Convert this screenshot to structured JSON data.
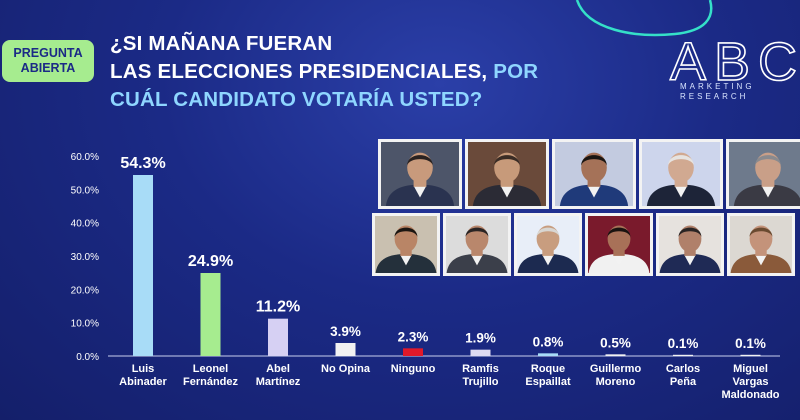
{
  "badge": {
    "line1": "PREGUNTA",
    "line2": "ABIERTA"
  },
  "question": {
    "line1": "¿SI MAÑANA FUERAN",
    "line2_white": "LAS ELECCIONES PRESIDENCIALES,",
    "line2_blue": " POR",
    "line3": "CUÁL CANDIDATO VOTARÍA USTED?"
  },
  "logo": {
    "mark": "ABC",
    "line1": "MARKETING",
    "line2": "RESEARCH"
  },
  "chart_data": {
    "type": "bar",
    "categories": [
      [
        "Luis",
        "Abinader"
      ],
      [
        "Leonel",
        "Fernández"
      ],
      [
        "Abel",
        "Martínez"
      ],
      [
        "No Opina"
      ],
      [
        "Ninguno"
      ],
      [
        "Ramfis",
        "Trujillo"
      ],
      [
        "Roque",
        "Espaillat"
      ],
      [
        "Guillermo",
        "Moreno"
      ],
      [
        "Carlos",
        "Peña"
      ],
      [
        "Miguel",
        "Vargas",
        "Maldonado"
      ]
    ],
    "values": [
      54.3,
      24.9,
      11.2,
      3.9,
      2.3,
      1.9,
      0.8,
      0.5,
      0.1,
      0.1
    ],
    "data_labels": [
      "54.3%",
      "24.9%",
      "11.2%",
      "3.9%",
      "2.3%",
      "1.9%",
      "0.8%",
      "0.5%",
      "0.1%",
      "0.1%"
    ],
    "bar_colors": [
      "#a8dcf7",
      "#a6ec8f",
      "#d6d0f3",
      "#f2f2f2",
      "#e0192a",
      "#dedaf1",
      "#a8dcf7",
      "#f2f2f2",
      "#f2f2f2",
      "#f2f2f2"
    ],
    "yticks": [
      "0.0%",
      "10.0%",
      "20.0%",
      "30.0%",
      "40.0%",
      "50.0%",
      "60.0%"
    ],
    "ylim": [
      0,
      60
    ],
    "grid": false
  },
  "photos": {
    "row1": [
      {
        "name": "photo-luis-abinader",
        "skin": "#c89a7c",
        "suit": "#2a3350",
        "hair": "#2a2220",
        "bg": "#4d5569"
      },
      {
        "name": "photo-leonel-fernandez",
        "skin": "#c79a7a",
        "suit": "#2b2b35",
        "hair": "#3a2c25",
        "bg": "#6a4a3a"
      },
      {
        "name": "photo-abel-martinez",
        "skin": "#a57258",
        "suit": "#1f3a7a",
        "hair": "#1b1612",
        "bg": "#c3cbe0"
      },
      {
        "name": "photo-no-opina",
        "skin": "#d1a991",
        "suit": "#1d2438",
        "hair": "#e6e3e0",
        "bg": "#cdd5ec"
      },
      {
        "name": "photo-ninguno",
        "skin": "#c99f88",
        "suit": "#3a3a44",
        "hair": "#8a8a8e",
        "bg": "#6e7a8c"
      }
    ],
    "row2": [
      {
        "name": "photo-ramfis-trujillo",
        "skin": "#b98566",
        "suit": "#24303b",
        "hair": "#1b1612",
        "bg": "#c9c0b0"
      },
      {
        "name": "photo-roque-espaillat",
        "skin": "#b9876c",
        "suit": "#3b3f4a",
        "hair": "#2a2424",
        "bg": "#dcdcdc"
      },
      {
        "name": "photo-guillermo-moreno",
        "skin": "#c89d7f",
        "suit": "#1c2a50",
        "hair": "#d8d6d2",
        "bg": "#e8eef8"
      },
      {
        "name": "photo-carlos-pena",
        "skin": "#a87158",
        "suit": "#f1f1f1",
        "hair": "#1a1310",
        "bg": "#7a1a2c"
      },
      {
        "name": "photo-miguel-vargas",
        "skin": "#b0806a",
        "suit": "#1f2a55",
        "hair": "#2a2424",
        "bg": "#e6e2de"
      },
      {
        "name": "photo-extra-candidate",
        "skin": "#c4937a",
        "suit": "#8a5a3a",
        "hair": "#6a4a30",
        "bg": "#dcd8d2"
      }
    ]
  }
}
